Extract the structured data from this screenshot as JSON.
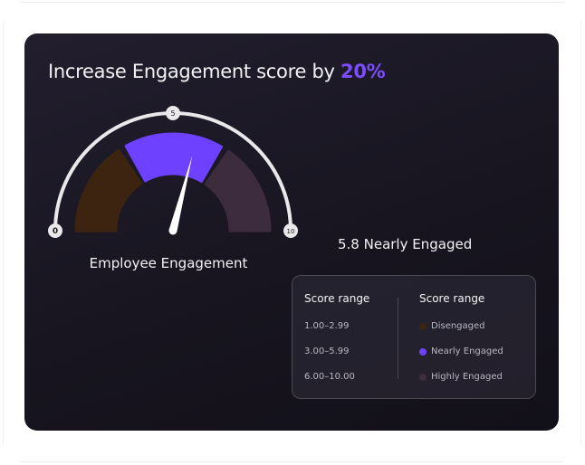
{
  "title": {
    "prefix": "Increase Engagement score by ",
    "highlight": "20%"
  },
  "gauge": {
    "label": "Employee Engagement",
    "min": 0,
    "max": 10,
    "mid": 5,
    "min_label": "0",
    "mid_label": "5",
    "max_label": "10",
    "value": 5.8,
    "segments": [
      {
        "name": "Disengaged",
        "from": 1.0,
        "to": 2.99,
        "color": "#3c2410"
      },
      {
        "name": "Nearly Engaged",
        "from": 3.0,
        "to": 5.99,
        "color": "#6e40ff"
      },
      {
        "name": "Highly Engaged",
        "from": 6.0,
        "to": 10.0,
        "color": "#3d2b3e"
      }
    ]
  },
  "score_text": "5.8 Nearly Engaged",
  "legend": {
    "left_header": "Score range",
    "right_header": "Score range",
    "ranges": [
      "1.00–2.99",
      "3.00–5.99",
      "6.00–10.00"
    ],
    "categories": [
      {
        "label": "Disengaged",
        "color": "#3c2410"
      },
      {
        "label": "Nearly Engaged",
        "color": "#6e40ff"
      },
      {
        "label": "Highly Engaged",
        "color": "#3d2b3e"
      }
    ]
  }
}
